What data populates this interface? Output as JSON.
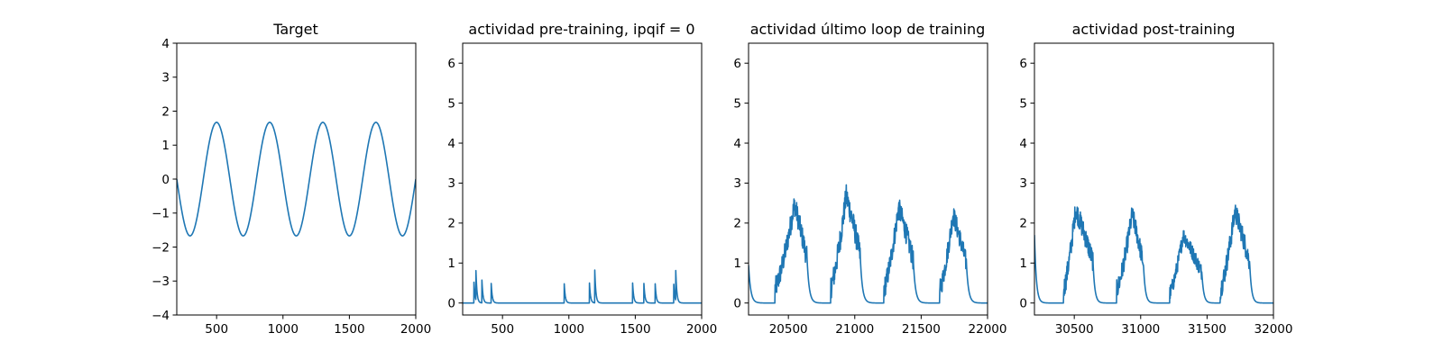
{
  "figure": {
    "background": "#ffffff",
    "line_color": "#1f77b4"
  },
  "chart_data": [
    {
      "type": "line",
      "title": "Target",
      "xlabel": "",
      "ylabel": "",
      "xlim": [
        200,
        2000
      ],
      "ylim": [
        -4,
        4
      ],
      "xticks": [
        500,
        1000,
        1500,
        2000
      ],
      "yticks": [
        -4,
        -3,
        -2,
        -1,
        0,
        1,
        2,
        3,
        4
      ],
      "grid": false,
      "series": [
        {
          "kind": "sinusoid",
          "amplitude": 1.67,
          "period": 400,
          "peaks_x": [
            500,
            900,
            1300,
            1700
          ],
          "troughs_x": [
            300,
            700,
            1100,
            1500,
            1900
          ],
          "y_at_xmin": 0,
          "y_at_xmax": -0.1
        }
      ]
    },
    {
      "type": "line",
      "title": "actividad pre-training, ipqif = 0",
      "xlabel": "",
      "ylabel": "",
      "xlim": [
        200,
        2000
      ],
      "ylim": [
        -0.3,
        6.5
      ],
      "xticks": [
        500,
        1000,
        1500,
        2000
      ],
      "yticks": [
        0,
        1,
        2,
        3,
        4,
        5,
        6
      ],
      "grid": false,
      "series": [
        {
          "kind": "decaying_spikes",
          "baseline": 0,
          "decay": 8,
          "spikes": [
            {
              "x": 285,
              "peak": 0.52
            },
            {
              "x": 300,
              "peak": 0.73
            },
            {
              "x": 345,
              "peak": 0.57
            },
            {
              "x": 415,
              "peak": 0.49
            },
            {
              "x": 965,
              "peak": 0.48
            },
            {
              "x": 1155,
              "peak": 0.5
            },
            {
              "x": 1195,
              "peak": 0.82
            },
            {
              "x": 1480,
              "peak": 0.5
            },
            {
              "x": 1565,
              "peak": 0.49
            },
            {
              "x": 1650,
              "peak": 0.48
            },
            {
              "x": 1790,
              "peak": 0.47
            },
            {
              "x": 1805,
              "peak": 0.74
            }
          ]
        }
      ]
    },
    {
      "type": "line",
      "title": "actividad último loop de training",
      "xlabel": "",
      "ylabel": "",
      "xlim": [
        20200,
        22000
      ],
      "ylim": [
        -0.3,
        6.5
      ],
      "xticks": [
        20500,
        21000,
        21500,
        22000
      ],
      "yticks": [
        0,
        1,
        2,
        3,
        4,
        5,
        6
      ],
      "grid": false,
      "series": [
        {
          "kind": "noisy_bursts",
          "baseline": 0,
          "decay": 16,
          "start_value": 0.95,
          "bursts": [
            {
              "start": 20400,
              "end": 20640,
              "peak_x": 20545,
              "peak": 2.9
            },
            {
              "start": 20820,
              "end": 21040,
              "peak_x": 20935,
              "peak": 3.15
            },
            {
              "start": 21220,
              "end": 21440,
              "peak_x": 21330,
              "peak": 2.8
            },
            {
              "start": 21640,
              "end": 21840,
              "peak_x": 21740,
              "peak": 2.6
            }
          ]
        }
      ]
    },
    {
      "type": "line",
      "title": "actividad post-training",
      "xlabel": "",
      "ylabel": "",
      "xlim": [
        30200,
        32000
      ],
      "ylim": [
        -0.3,
        6.5
      ],
      "xticks": [
        30500,
        31000,
        31500,
        32000
      ],
      "yticks": [
        0,
        1,
        2,
        3,
        4,
        5,
        6
      ],
      "grid": false,
      "series": [
        {
          "kind": "noisy_bursts",
          "baseline": 0,
          "decay": 14,
          "start_value": 1.7,
          "bursts": [
            {
              "start": 30420,
              "end": 30640,
              "peak_x": 30510,
              "peak": 2.75
            },
            {
              "start": 30820,
              "end": 31020,
              "peak_x": 30935,
              "peak": 2.6
            },
            {
              "start": 31220,
              "end": 31460,
              "peak_x": 31320,
              "peak": 2.0
            },
            {
              "start": 31600,
              "end": 31820,
              "peak_x": 31710,
              "peak": 2.7
            }
          ]
        }
      ]
    }
  ]
}
